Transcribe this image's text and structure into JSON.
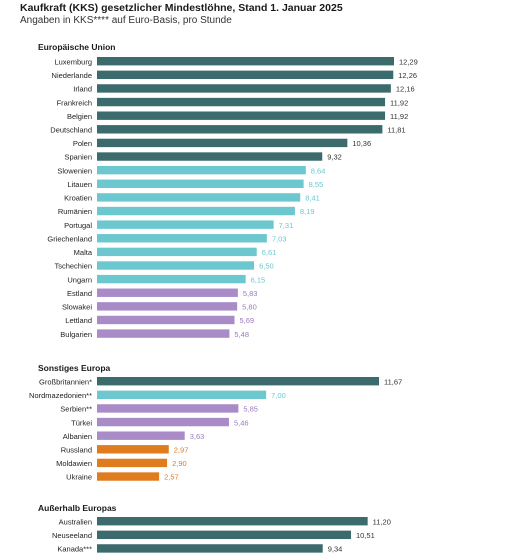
{
  "chart_data": {
    "type": "bar",
    "orientation": "horizontal",
    "title": "Kaufkraft (KKS) gesetzlicher Mindestlöhne, Stand 1. Januar 2025",
    "subtitle": "Angaben in KKS**** auf Euro-Basis, pro Stunde",
    "xlim": [
      0,
      12.29
    ],
    "grid": false,
    "legend": "none",
    "colors": {
      "dark_teal": "#3b6b6c",
      "light_teal": "#6cc7cf",
      "purple": "#a98bc8",
      "orange": "#e07c20"
    },
    "groups": [
      {
        "name": "Europäische Union",
        "bars": [
          {
            "label": "Luxemburg",
            "value": 12.29,
            "display": "12,29",
            "color": "dark_teal"
          },
          {
            "label": "Niederlande",
            "value": 12.26,
            "display": "12,26",
            "color": "dark_teal"
          },
          {
            "label": "Irland",
            "value": 12.16,
            "display": "12,16",
            "color": "dark_teal"
          },
          {
            "label": "Frankreich",
            "value": 11.92,
            "display": "11,92",
            "color": "dark_teal"
          },
          {
            "label": "Belgien",
            "value": 11.92,
            "display": "11,92",
            "color": "dark_teal"
          },
          {
            "label": "Deutschland",
            "value": 11.81,
            "display": "11,81",
            "color": "dark_teal"
          },
          {
            "label": "Polen",
            "value": 10.36,
            "display": "10,36",
            "color": "dark_teal"
          },
          {
            "label": "Spanien",
            "value": 9.32,
            "display": "9,32",
            "color": "dark_teal"
          },
          {
            "label": "Slowenien",
            "value": 8.64,
            "display": "8,64",
            "color": "light_teal"
          },
          {
            "label": "Litauen",
            "value": 8.55,
            "display": "8,55",
            "color": "light_teal"
          },
          {
            "label": "Kroatien",
            "value": 8.41,
            "display": "8,41",
            "color": "light_teal"
          },
          {
            "label": "Rumänien",
            "value": 8.19,
            "display": "8,19",
            "color": "light_teal"
          },
          {
            "label": "Portugal",
            "value": 7.31,
            "display": "7,31",
            "color": "light_teal"
          },
          {
            "label": "Griechenland",
            "value": 7.03,
            "display": "7,03",
            "color": "light_teal"
          },
          {
            "label": "Malta",
            "value": 6.61,
            "display": "6,61",
            "color": "light_teal"
          },
          {
            "label": "Tschechien",
            "value": 6.5,
            "display": "6,50",
            "color": "light_teal"
          },
          {
            "label": "Ungarn",
            "value": 6.15,
            "display": "6,15",
            "color": "light_teal"
          },
          {
            "label": "Estland",
            "value": 5.83,
            "display": "5,83",
            "color": "purple"
          },
          {
            "label": "Slowakei",
            "value": 5.8,
            "display": "5,80",
            "color": "purple"
          },
          {
            "label": "Lettland",
            "value": 5.69,
            "display": "5,69",
            "color": "purple"
          },
          {
            "label": "Bulgarien",
            "value": 5.48,
            "display": "5,48",
            "color": "purple"
          }
        ]
      },
      {
        "name": "Sonstiges Europa",
        "bars": [
          {
            "label": "Großbritannien*",
            "value": 11.67,
            "display": "11,67",
            "color": "dark_teal"
          },
          {
            "label": "Nordmazedonien**",
            "value": 7.0,
            "display": "7,00",
            "color": "light_teal"
          },
          {
            "label": "Serbien**",
            "value": 5.85,
            "display": "5,85",
            "color": "purple"
          },
          {
            "label": "Türkei",
            "value": 5.46,
            "display": "5,46",
            "color": "purple"
          },
          {
            "label": "Albanien",
            "value": 3.63,
            "display": "3,63",
            "color": "purple"
          },
          {
            "label": "Russland",
            "value": 2.97,
            "display": "2,97",
            "color": "orange"
          },
          {
            "label": "Moldawien",
            "value": 2.9,
            "display": "2,90",
            "color": "orange"
          },
          {
            "label": "Ukraine",
            "value": 2.57,
            "display": "2,57",
            "color": "orange"
          }
        ]
      },
      {
        "name": "Außerhalb Europas",
        "bars": [
          {
            "label": "Australien",
            "value": 11.2,
            "display": "11,20",
            "color": "dark_teal"
          },
          {
            "label": "Neuseeland",
            "value": 10.51,
            "display": "10,51",
            "color": "dark_teal"
          },
          {
            "label": "Kanada***",
            "value": 9.34,
            "display": "9,34",
            "color": "dark_teal"
          }
        ]
      }
    ]
  }
}
